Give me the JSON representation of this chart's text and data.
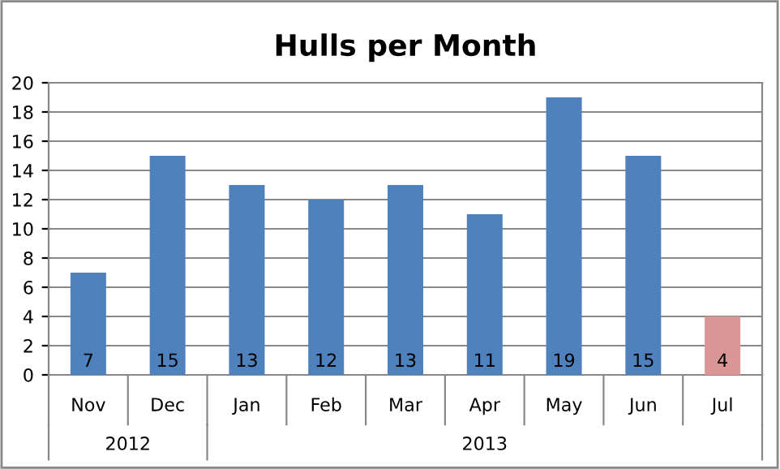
{
  "chart_data": {
    "type": "bar",
    "title": "Hulls per Month",
    "categories": [
      "Nov",
      "Dec",
      "Jan",
      "Feb",
      "Mar",
      "Apr",
      "May",
      "Jun",
      "Jul"
    ],
    "values": [
      7,
      15,
      13,
      12,
      13,
      11,
      19,
      15,
      4
    ],
    "colors": [
      "#4f81bd",
      "#4f81bd",
      "#4f81bd",
      "#4f81bd",
      "#4f81bd",
      "#4f81bd",
      "#4f81bd",
      "#4f81bd",
      "#d99694"
    ],
    "ylim": [
      0,
      20
    ],
    "yticks": [
      0,
      2,
      4,
      6,
      8,
      10,
      12,
      14,
      16,
      18,
      20
    ],
    "grid": "y",
    "data_labels": true,
    "annotations": [
      "2012",
      "2013"
    ]
  }
}
